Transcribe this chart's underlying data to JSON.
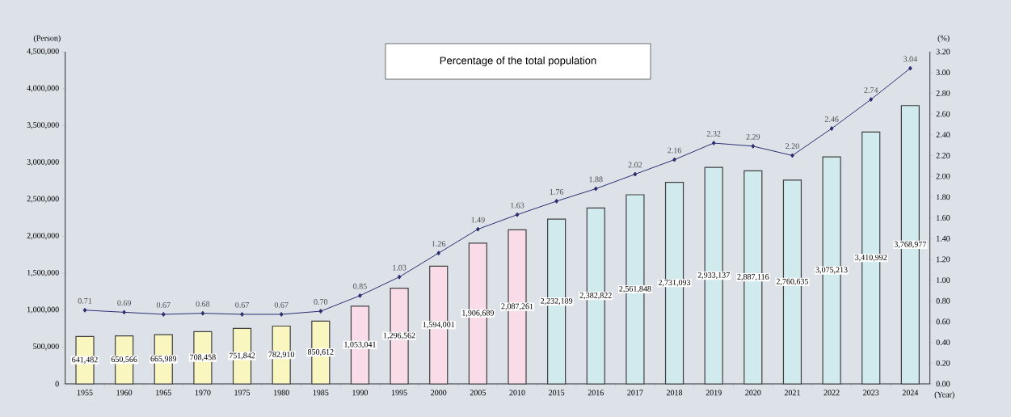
{
  "chart_data": {
    "type": "bar",
    "categories": [
      "1955",
      "1960",
      "1965",
      "1970",
      "1975",
      "1980",
      "1985",
      "1990",
      "1995",
      "2000",
      "2005",
      "2010",
      "2015",
      "2016",
      "2017",
      "2018",
      "2019",
      "2020",
      "2021",
      "2022",
      "2023",
      "2024"
    ],
    "ylabel": "(Person)",
    "y2label": "(%)",
    "xlabel": "(Year)",
    "annotations": [
      "Percentage of the total population"
    ],
    "series": [
      {
        "values": [
          641482,
          650566,
          665989,
          708458,
          751842,
          782910,
          850612,
          1053041,
          1296562,
          1594001,
          1906689,
          2087261,
          2232189,
          2382822,
          2561848,
          2731093,
          2933137,
          2887116,
          2760635,
          3075213,
          3410992,
          3768977
        ],
        "colors": [
          "#f9f6c0",
          "#f9f6c0",
          "#f9f6c0",
          "#f9f6c0",
          "#f9f6c0",
          "#f9f6c0",
          "#f9f6c0",
          "#f9dce8",
          "#f9dce8",
          "#f9dce8",
          "#f9dce8",
          "#f9dce8",
          "#d0eaee",
          "#d0eaee",
          "#d0eaee",
          "#d0eaee",
          "#d0eaee",
          "#d0eaee",
          "#d0eaee",
          "#d0eaee",
          "#d0eaee",
          "#d0eaee"
        ],
        "value_labels": [
          "641,482",
          "650,566",
          "665,989",
          "708,458",
          "751,842",
          "782,910",
          "850,612",
          "1,053,041",
          "1,296,562",
          "1,594,001",
          "1,906,689",
          "2,087,261",
          "2,232,189",
          "2,382,822",
          "2,561,848",
          "2,731,093",
          "2,933,137",
          "2,887,116",
          "2,760,635",
          "3,075,213",
          "3,410,992",
          "3,768,977"
        ]
      },
      {
        "type": "line",
        "axis": "y2",
        "color": "#2b2d6e",
        "marker": "diamond",
        "values": [
          0.71,
          0.69,
          0.67,
          0.68,
          0.67,
          0.67,
          0.7,
          0.85,
          1.03,
          1.26,
          1.49,
          1.63,
          1.76,
          1.88,
          2.02,
          2.16,
          2.32,
          2.29,
          2.2,
          2.46,
          2.74,
          3.04
        ],
        "value_labels": [
          "0.71",
          "0.69",
          "0.67",
          "0.68",
          "0.67",
          "0.67",
          "0.70",
          "0.85",
          "1.03",
          "1.26",
          "1.49",
          "1.63",
          "1.76",
          "1.88",
          "2.02",
          "2.16",
          "2.32",
          "2.29",
          "2.20",
          "2.46",
          "2.74",
          "3.04"
        ]
      }
    ],
    "ylim": [
      0,
      4500000
    ],
    "yticks": [
      0,
      {
        "value": 500000,
        "label": "500,000"
      },
      {
        "value": 1000000,
        "label": "1,000,000"
      },
      {
        "value": 1500000,
        "label": "1,500,000"
      },
      {
        "value": 2000000,
        "label": "2,000,000"
      },
      {
        "value": 2500000,
        "label": "2,500,000"
      },
      {
        "value": 3000000,
        "label": "3,000,000"
      },
      {
        "value": 3500000,
        "label": "3,500,000"
      },
      {
        "value": 4000000,
        "label": "4,000,000"
      },
      {
        "value": 4500000,
        "label": "4,500,000"
      }
    ],
    "y2lim": [
      0,
      3.2
    ],
    "y2ticks": [
      {
        "value": 0,
        "label": "0.00"
      },
      {
        "value": 0.2,
        "label": "0.20"
      },
      {
        "value": 0.4,
        "label": "0.40"
      },
      {
        "value": 0.6,
        "label": "0.60"
      },
      {
        "value": 0.8,
        "label": "0.80"
      },
      {
        "value": 1.0,
        "label": "1.00"
      },
      {
        "value": 1.2,
        "label": "1.20"
      },
      {
        "value": 1.4,
        "label": "1.40"
      },
      {
        "value": 1.6,
        "label": "1.60"
      },
      {
        "value": 1.8,
        "label": "1.80"
      },
      {
        "value": 2.0,
        "label": "2.00"
      },
      {
        "value": 2.2,
        "label": "2.20"
      },
      {
        "value": 2.4,
        "label": "2.40"
      },
      {
        "value": 2.6,
        "label": "2.60"
      },
      {
        "value": 2.8,
        "label": "2.80"
      },
      {
        "value": 3.0,
        "label": "3.00"
      },
      {
        "value": 3.2,
        "label": "3.20"
      }
    ]
  }
}
